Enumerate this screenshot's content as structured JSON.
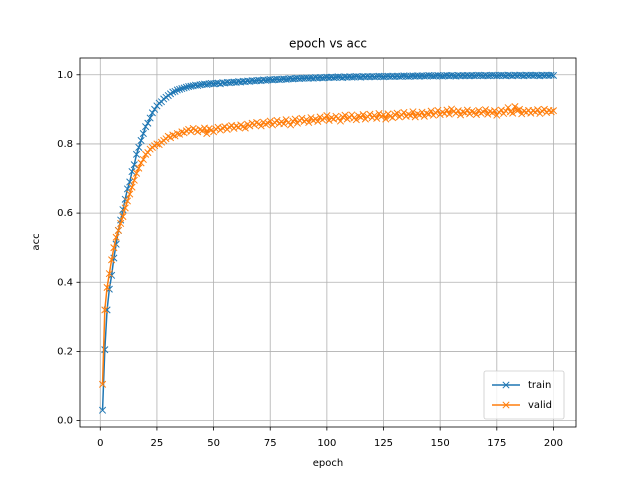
{
  "chart_data": {
    "type": "line",
    "title": "epoch vs acc",
    "xlabel": "epoch",
    "ylabel": "acc",
    "x": [
      1,
      2,
      3,
      4,
      5,
      6,
      7,
      8,
      9,
      10,
      11,
      12,
      13,
      14,
      15,
      16,
      17,
      18,
      19,
      20,
      21,
      22,
      23,
      24,
      25,
      26,
      27,
      28,
      29,
      30,
      31,
      32,
      33,
      34,
      35,
      36,
      37,
      38,
      39,
      40,
      41,
      42,
      43,
      44,
      45,
      46,
      47,
      48,
      49,
      50,
      51,
      52,
      53,
      54,
      55,
      56,
      57,
      58,
      59,
      60,
      61,
      62,
      63,
      64,
      65,
      66,
      67,
      68,
      69,
      70,
      71,
      72,
      73,
      74,
      75,
      76,
      77,
      78,
      79,
      80,
      81,
      82,
      83,
      84,
      85,
      86,
      87,
      88,
      89,
      90,
      91,
      92,
      93,
      94,
      95,
      96,
      97,
      98,
      99,
      100,
      101,
      102,
      103,
      104,
      105,
      106,
      107,
      108,
      109,
      110,
      111,
      112,
      113,
      114,
      115,
      116,
      117,
      118,
      119,
      120,
      121,
      122,
      123,
      124,
      125,
      126,
      127,
      128,
      129,
      130,
      131,
      132,
      133,
      134,
      135,
      136,
      137,
      138,
      139,
      140,
      141,
      142,
      143,
      144,
      145,
      146,
      147,
      148,
      149,
      150,
      151,
      152,
      153,
      154,
      155,
      156,
      157,
      158,
      159,
      160,
      161,
      162,
      163,
      164,
      165,
      166,
      167,
      168,
      169,
      170,
      171,
      172,
      173,
      174,
      175,
      176,
      177,
      178,
      179,
      180,
      181,
      182,
      183,
      184,
      185,
      186,
      187,
      188,
      189,
      190,
      191,
      192,
      193,
      194,
      195,
      196,
      197,
      198,
      199,
      200
    ],
    "series": [
      {
        "name": "train",
        "color": "#1f77b4",
        "marker": "x",
        "values": [
          0.03,
          0.205,
          0.32,
          0.38,
          0.42,
          0.47,
          0.51,
          0.55,
          0.58,
          0.61,
          0.64,
          0.67,
          0.69,
          0.72,
          0.74,
          0.77,
          0.79,
          0.81,
          0.83,
          0.85,
          0.86,
          0.875,
          0.89,
          0.9,
          0.91,
          0.918,
          0.922,
          0.93,
          0.935,
          0.94,
          0.945,
          0.95,
          0.952,
          0.956,
          0.958,
          0.96,
          0.962,
          0.964,
          0.966,
          0.967,
          0.968,
          0.97,
          0.969,
          0.971,
          0.972,
          0.973,
          0.972,
          0.974,
          0.975,
          0.974,
          0.975,
          0.976,
          0.974,
          0.977,
          0.976,
          0.978,
          0.977,
          0.978,
          0.979,
          0.978,
          0.98,
          0.979,
          0.981,
          0.98,
          0.982,
          0.981,
          0.983,
          0.982,
          0.983,
          0.984,
          0.983,
          0.985,
          0.984,
          0.985,
          0.986,
          0.985,
          0.986,
          0.987,
          0.986,
          0.987,
          0.988,
          0.987,
          0.988,
          0.989,
          0.988,
          0.989,
          0.99,
          0.989,
          0.99,
          0.99,
          0.991,
          0.99,
          0.991,
          0.99,
          0.992,
          0.991,
          0.992,
          0.991,
          0.992,
          0.993,
          0.992,
          0.993,
          0.992,
          0.993,
          0.994,
          0.993,
          0.992,
          0.994,
          0.993,
          0.994,
          0.993,
          0.994,
          0.995,
          0.994,
          0.993,
          0.995,
          0.994,
          0.995,
          0.994,
          0.995,
          0.994,
          0.995,
          0.996,
          0.995,
          0.994,
          0.995,
          0.996,
          0.995,
          0.996,
          0.995,
          0.996,
          0.995,
          0.996,
          0.997,
          0.996,
          0.995,
          0.996,
          0.997,
          0.996,
          0.997,
          0.996,
          0.997,
          0.996,
          0.997,
          0.998,
          0.997,
          0.996,
          0.997,
          0.998,
          0.997,
          0.996,
          0.997,
          0.998,
          0.997,
          0.998,
          0.997,
          0.996,
          0.998,
          0.997,
          0.998,
          0.997,
          0.998,
          0.997,
          0.998,
          0.997,
          0.998,
          0.999,
          0.998,
          0.997,
          0.998,
          0.997,
          0.998,
          0.999,
          0.998,
          0.997,
          0.998,
          0.999,
          0.998,
          0.997,
          0.999,
          0.998,
          0.997,
          0.999,
          0.998,
          0.999,
          0.998,
          0.997,
          0.999,
          0.998,
          0.999,
          0.998,
          0.999,
          0.998,
          0.997,
          0.999,
          0.998,
          0.999,
          0.998,
          0.999,
          0.998
        ]
      },
      {
        "name": "valid",
        "color": "#ff7f0e",
        "marker": "x",
        "values": [
          0.105,
          0.32,
          0.385,
          0.425,
          0.465,
          0.5,
          0.53,
          0.55,
          0.57,
          0.59,
          0.615,
          0.635,
          0.655,
          0.675,
          0.695,
          0.715,
          0.73,
          0.745,
          0.755,
          0.77,
          0.775,
          0.785,
          0.79,
          0.795,
          0.8,
          0.798,
          0.805,
          0.81,
          0.815,
          0.822,
          0.818,
          0.826,
          0.823,
          0.83,
          0.828,
          0.835,
          0.832,
          0.838,
          0.842,
          0.836,
          0.845,
          0.84,
          0.835,
          0.842,
          0.838,
          0.846,
          0.83,
          0.844,
          0.84,
          0.835,
          0.843,
          0.848,
          0.84,
          0.846,
          0.85,
          0.842,
          0.849,
          0.853,
          0.845,
          0.852,
          0.848,
          0.855,
          0.85,
          0.846,
          0.857,
          0.852,
          0.86,
          0.855,
          0.862,
          0.858,
          0.852,
          0.863,
          0.857,
          0.86,
          0.866,
          0.855,
          0.862,
          0.868,
          0.859,
          0.864,
          0.858,
          0.87,
          0.862,
          0.855,
          0.866,
          0.872,
          0.86,
          0.868,
          0.874,
          0.865,
          0.87,
          0.862,
          0.876,
          0.868,
          0.872,
          0.865,
          0.878,
          0.87,
          0.874,
          0.882,
          0.868,
          0.876,
          0.872,
          0.88,
          0.874,
          0.866,
          0.878,
          0.883,
          0.872,
          0.877,
          0.884,
          0.875,
          0.87,
          0.881,
          0.877,
          0.885,
          0.872,
          0.879,
          0.886,
          0.876,
          0.882,
          0.874,
          0.888,
          0.879,
          0.884,
          0.872,
          0.887,
          0.88,
          0.876,
          0.885,
          0.889,
          0.878,
          0.884,
          0.891,
          0.88,
          0.886,
          0.882,
          0.893,
          0.878,
          0.887,
          0.884,
          0.892,
          0.88,
          0.889,
          0.886,
          0.895,
          0.883,
          0.89,
          0.897,
          0.885,
          0.892,
          0.888,
          0.898,
          0.886,
          0.901,
          0.894,
          0.889,
          0.896,
          0.884,
          0.893,
          0.89,
          0.898,
          0.887,
          0.894,
          0.891,
          0.885,
          0.897,
          0.889,
          0.893,
          0.899,
          0.886,
          0.894,
          0.89,
          0.896,
          0.883,
          0.892,
          0.898,
          0.888,
          0.895,
          0.905,
          0.893,
          0.889,
          0.908,
          0.896,
          0.9,
          0.887,
          0.895,
          0.891,
          0.897,
          0.889,
          0.896,
          0.892,
          0.899,
          0.888,
          0.895,
          0.9,
          0.891,
          0.897,
          0.893,
          0.896
        ]
      }
    ],
    "xlim": [
      -8.95,
      209.95
    ],
    "ylim": [
      -0.0185,
      1.0485
    ],
    "xticks": [
      0,
      25,
      50,
      75,
      100,
      125,
      150,
      175,
      200
    ],
    "yticks": [
      {
        "value": 0,
        "label": "0.0"
      },
      {
        "value": 0.2,
        "label": "0.2"
      },
      {
        "value": 0.4,
        "label": "0.4"
      },
      {
        "value": 0.6,
        "label": "0.6"
      },
      {
        "value": 0.8,
        "label": "0.8"
      },
      {
        "value": 1,
        "label": "1.0"
      }
    ],
    "grid": true,
    "legend": "lower right"
  }
}
